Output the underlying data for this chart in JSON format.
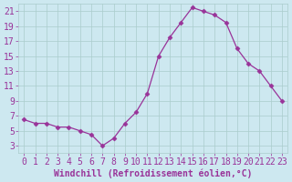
{
  "x": [
    0,
    1,
    2,
    3,
    4,
    5,
    6,
    7,
    8,
    9,
    10,
    11,
    12,
    13,
    14,
    15,
    16,
    17,
    18,
    19,
    20,
    21,
    22,
    23
  ],
  "y": [
    6.5,
    6.0,
    6.0,
    5.5,
    5.5,
    5.0,
    4.5,
    3.0,
    4.0,
    6.0,
    7.5,
    10.0,
    15.0,
    17.5,
    19.5,
    21.5,
    21.0,
    20.5,
    19.5,
    16.0,
    14.0,
    13.0,
    11.0,
    9.0
  ],
  "line_color": "#993399",
  "marker": "D",
  "marker_size": 2.5,
  "xlabel": "Windchill (Refroidissement éolien,°C)",
  "xlim": [
    -0.5,
    23.5
  ],
  "ylim": [
    2,
    22
  ],
  "yticks": [
    3,
    5,
    7,
    9,
    11,
    13,
    15,
    17,
    19,
    21
  ],
  "xticks": [
    0,
    1,
    2,
    3,
    4,
    5,
    6,
    7,
    8,
    9,
    10,
    11,
    12,
    13,
    14,
    15,
    16,
    17,
    18,
    19,
    20,
    21,
    22,
    23
  ],
  "bg_color": "#cde8f0",
  "grid_color": "#aacccc",
  "tick_color": "#993399",
  "label_color": "#993399",
  "font_size": 7
}
